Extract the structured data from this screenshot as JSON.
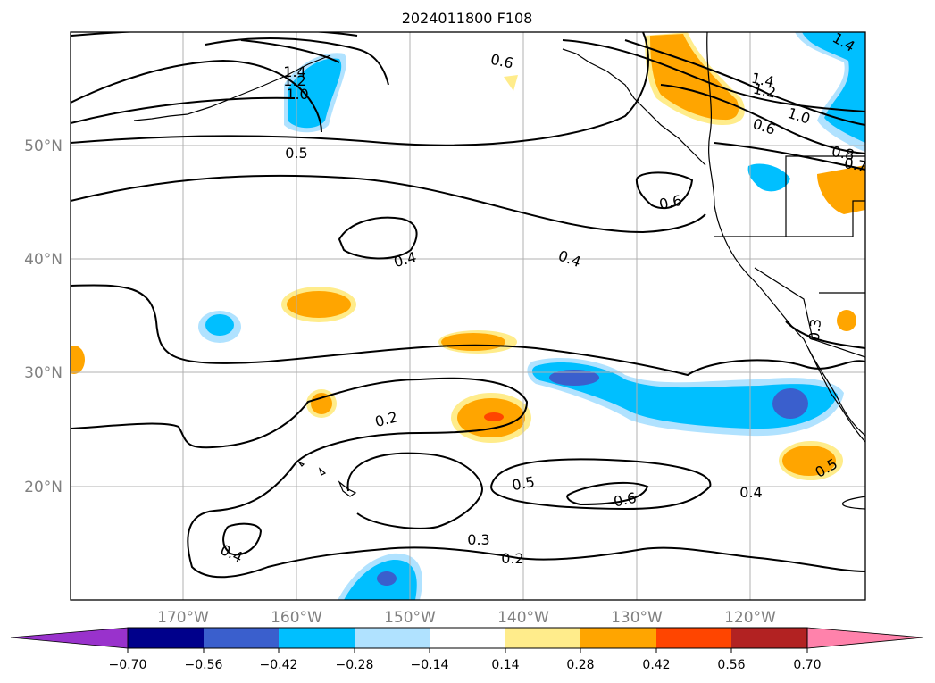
{
  "title": "2024011800 F108",
  "map": {
    "lat_labels": [
      "50°N",
      "40°N",
      "30°N",
      "20°N"
    ],
    "lon_labels": [
      "170°W",
      "160°W",
      "150°W",
      "140°W",
      "130°W",
      "120°W"
    ],
    "contour_labels": [
      "1.4",
      "1.2",
      "1.0",
      "0.6",
      "1.4",
      "1.2",
      "1.0",
      "0.6",
      "0.8",
      "0.7",
      "0.5",
      "0.6",
      "0.4",
      "0.4",
      "0.3",
      "0.2",
      "0.5",
      "0.6",
      "0.4",
      "0.4",
      "0.3",
      "0.2",
      "0.5",
      "1.4"
    ],
    "colors": {
      "frame": "#000000",
      "grid": "#b0b0b0",
      "land": "#ffffff"
    }
  },
  "colorbar": {
    "tick_labels": [
      "−0.70",
      "−0.56",
      "−0.42",
      "−0.28",
      "−0.14",
      "0.14",
      "0.28",
      "0.42",
      "0.56",
      "0.70"
    ],
    "colors": [
      "#9932cc",
      "#00008b",
      "#3a5fcd",
      "#00bfff",
      "#b0e2ff",
      "#ffffff",
      "#ffec8b",
      "#ffa500",
      "#ff4500",
      "#b22222",
      "#ff82ab"
    ]
  }
}
